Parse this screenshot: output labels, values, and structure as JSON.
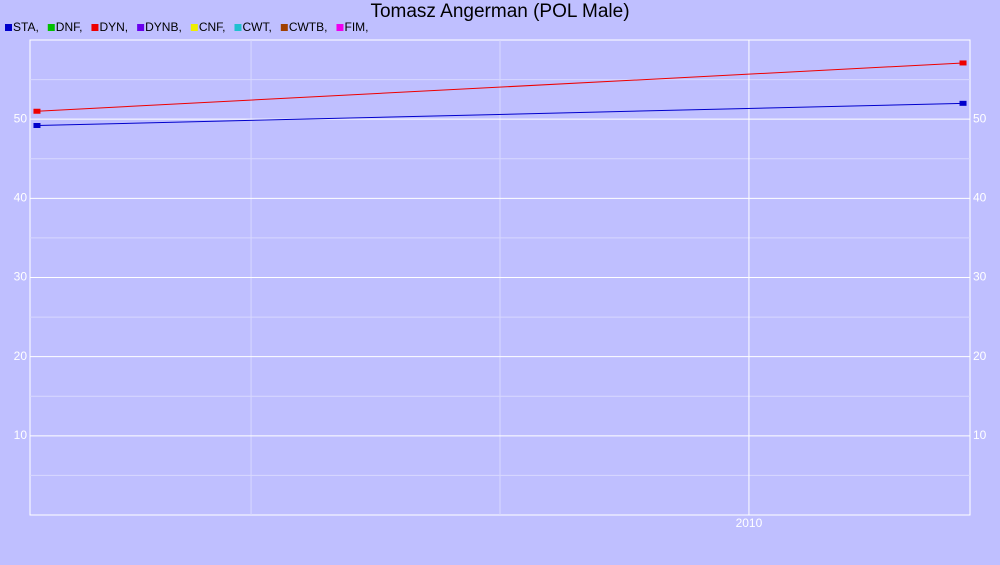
{
  "chart_data": {
    "type": "line",
    "title": "Tomasz Angerman (POL Male)",
    "x": [
      2008.57,
      2010.43
    ],
    "series": [
      {
        "name": "STA,",
        "color": "#0000cc",
        "values": [
          49.2,
          52.0
        ]
      },
      {
        "name": "DNF,",
        "color": "#00c000",
        "values": [
          null,
          null
        ]
      },
      {
        "name": "DYN,",
        "color": "#ee0000",
        "values": [
          51.0,
          57.1
        ]
      },
      {
        "name": "DYNB,",
        "color": "#6a00ee",
        "values": [
          null,
          null
        ]
      },
      {
        "name": "CNF,",
        "color": "#eeee00",
        "values": [
          null,
          null
        ]
      },
      {
        "name": "CWT,",
        "color": "#20c0d0",
        "values": [
          null,
          null
        ]
      },
      {
        "name": "CWTB,",
        "color": "#a04000",
        "values": [
          null,
          null
        ]
      },
      {
        "name": "FIM,",
        "color": "#ee00ee",
        "values": [
          null,
          null
        ]
      }
    ],
    "xlim": [
      2008.556,
      2010.444
    ],
    "xticks": [
      2010
    ],
    "xminor": [
      2009,
      2009.5
    ],
    "ylim": [
      0,
      60
    ],
    "yticks": [
      10,
      20,
      30,
      40,
      50
    ],
    "yminor": [
      5,
      15,
      25,
      35,
      45,
      55
    ],
    "grid": true
  }
}
